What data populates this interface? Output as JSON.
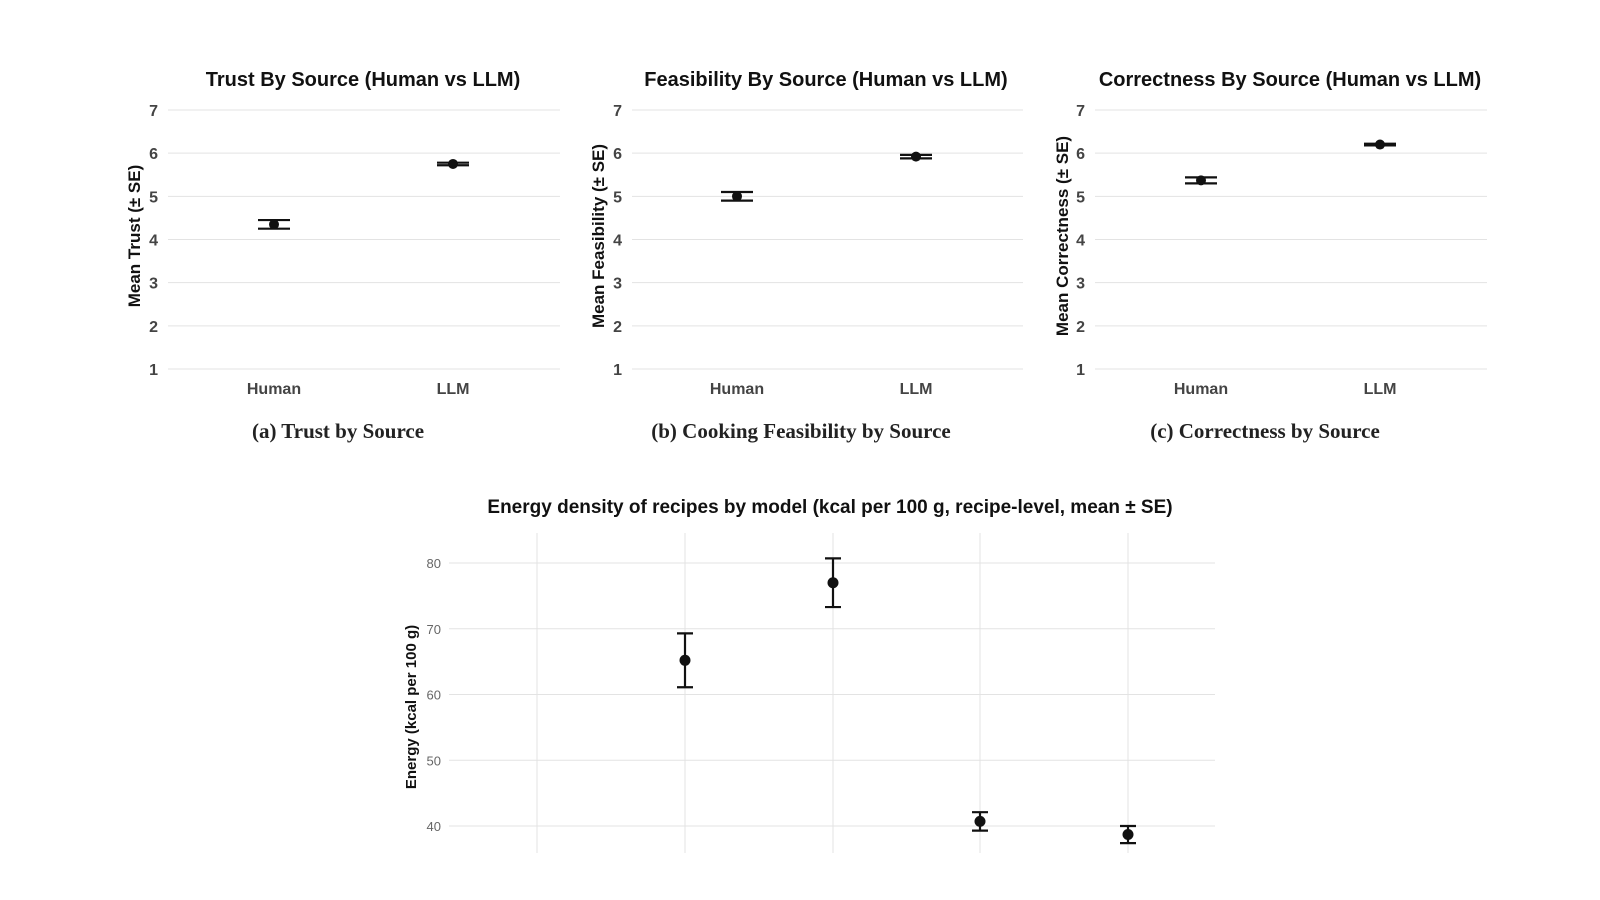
{
  "chart_data": [
    {
      "type": "scatter",
      "title": "Trust By Source (Human vs LLM)",
      "ylabel": "Mean Trust (± SE)",
      "categories": [
        "Human",
        "LLM"
      ],
      "values": [
        4.35,
        5.75
      ],
      "se": [
        0.1,
        0.03
      ],
      "yticks": [
        1,
        2,
        3,
        4,
        5,
        6,
        7
      ],
      "ylim": [
        1,
        7
      ],
      "caption": "(a) Trust by Source"
    },
    {
      "type": "scatter",
      "title": "Feasibility By Source (Human vs LLM)",
      "ylabel": "Mean Feasibility (± SE)",
      "categories": [
        "Human",
        "LLM"
      ],
      "values": [
        5.0,
        5.92
      ],
      "se": [
        0.1,
        0.04
      ],
      "yticks": [
        1,
        2,
        3,
        4,
        5,
        6,
        7
      ],
      "ylim": [
        1,
        7
      ],
      "caption": "(b) Cooking Feasibility by Source"
    },
    {
      "type": "scatter",
      "title": "Correctness By Source (Human vs LLM)",
      "ylabel": "Mean Correctness (± SE)",
      "categories": [
        "Human",
        "LLM"
      ],
      "values": [
        5.37,
        6.2
      ],
      "se": [
        0.07,
        0.02
      ],
      "yticks": [
        1,
        2,
        3,
        4,
        5,
        6,
        7
      ],
      "ylim": [
        1,
        7
      ],
      "caption": "(c) Correctness by Source"
    },
    {
      "type": "scatter",
      "title": "Energy density of recipes by model (kcal per 100 g, recipe-level, mean ± SE)",
      "ylabel": "Energy (kcal per 100 g)",
      "x": [
        1,
        2,
        3,
        4,
        5
      ],
      "values": [
        null,
        65.2,
        77.0,
        40.7,
        38.7
      ],
      "se": [
        null,
        4.1,
        3.7,
        1.4,
        1.3
      ],
      "yticks": [
        40,
        50,
        60,
        70,
        80
      ],
      "ylim": [
        36,
        84
      ]
    }
  ]
}
